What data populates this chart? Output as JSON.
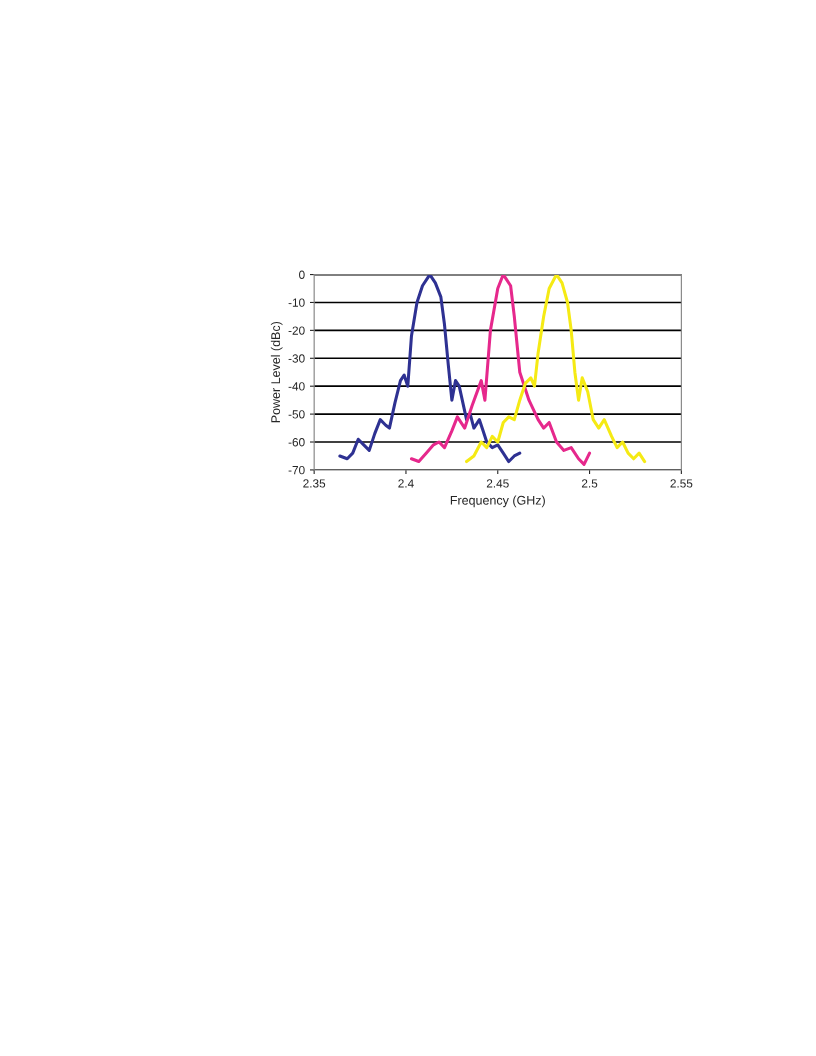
{
  "chart_data": {
    "type": "line",
    "xlabel": "Frequency (GHz)",
    "ylabel": "Power Level (dBc)",
    "xlim": [
      2.35,
      2.55
    ],
    "xticks": [
      2.35,
      2.4,
      2.45,
      2.5,
      2.55
    ],
    "ylim": [
      -70,
      0
    ],
    "yticks": [
      0,
      -10,
      -20,
      -30,
      -40,
      -50,
      -60,
      -70
    ],
    "grid": "y",
    "marker": "none",
    "line_style": "solid",
    "series": [
      {
        "color": "#2e3192",
        "x": [
          2.364,
          2.368,
          2.371,
          2.374,
          2.377,
          2.38,
          2.383,
          2.386,
          2.389,
          2.391,
          2.394,
          2.397,
          2.399,
          2.401,
          2.403,
          2.406,
          2.409,
          2.412,
          2.413,
          2.416,
          2.419,
          2.421,
          2.423,
          2.425,
          2.427,
          2.429,
          2.431,
          2.433,
          2.435,
          2.437,
          2.44,
          2.442,
          2.444,
          2.447,
          2.45,
          2.453,
          2.456,
          2.459,
          2.462
        ],
        "values": [
          -65,
          -66,
          -64,
          -59,
          -61,
          -63,
          -57,
          -52,
          -54,
          -55,
          -46,
          -38,
          -36,
          -40,
          -22,
          -10,
          -4,
          -1,
          0,
          -3,
          -8,
          -18,
          -32,
          -45,
          -38,
          -40,
          -46,
          -52,
          -50,
          -55,
          -52,
          -56,
          -60,
          -62,
          -61,
          -64,
          -67,
          -65,
          -64
        ]
      },
      {
        "color": "#e6288c",
        "x": [
          2.403,
          2.407,
          2.411,
          2.415,
          2.418,
          2.421,
          2.425,
          2.428,
          2.432,
          2.436,
          2.441,
          2.443,
          2.446,
          2.45,
          2.453,
          2.457,
          2.459,
          2.462,
          2.467,
          2.472,
          2.475,
          2.478,
          2.482,
          2.486,
          2.49,
          2.494,
          2.497,
          2.5
        ],
        "values": [
          -66,
          -67,
          -64,
          -61,
          -60,
          -62,
          -56,
          -51,
          -55,
          -47,
          -38,
          -45,
          -20,
          -5,
          0,
          -4,
          -15,
          -35,
          -45,
          -52,
          -55,
          -53,
          -60,
          -63,
          -62,
          -66,
          -68,
          -64
        ]
      },
      {
        "color": "#f5ea14",
        "x": [
          2.433,
          2.437,
          2.441,
          2.444,
          2.447,
          2.45,
          2.453,
          2.456,
          2.459,
          2.462,
          2.465,
          2.468,
          2.47,
          2.472,
          2.475,
          2.478,
          2.482,
          2.485,
          2.488,
          2.49,
          2.492,
          2.494,
          2.496,
          2.499,
          2.502,
          2.505,
          2.508,
          2.512,
          2.515,
          2.518,
          2.521,
          2.524,
          2.527,
          2.53
        ],
        "values": [
          -67,
          -65,
          -60,
          -62,
          -58,
          -60,
          -53,
          -51,
          -52,
          -45,
          -39,
          -37,
          -40,
          -28,
          -15,
          -5,
          0,
          -3,
          -10,
          -20,
          -35,
          -45,
          -37,
          -42,
          -52,
          -55,
          -52,
          -58,
          -62,
          -60,
          -64,
          -66,
          -64,
          -67
        ]
      }
    ]
  }
}
